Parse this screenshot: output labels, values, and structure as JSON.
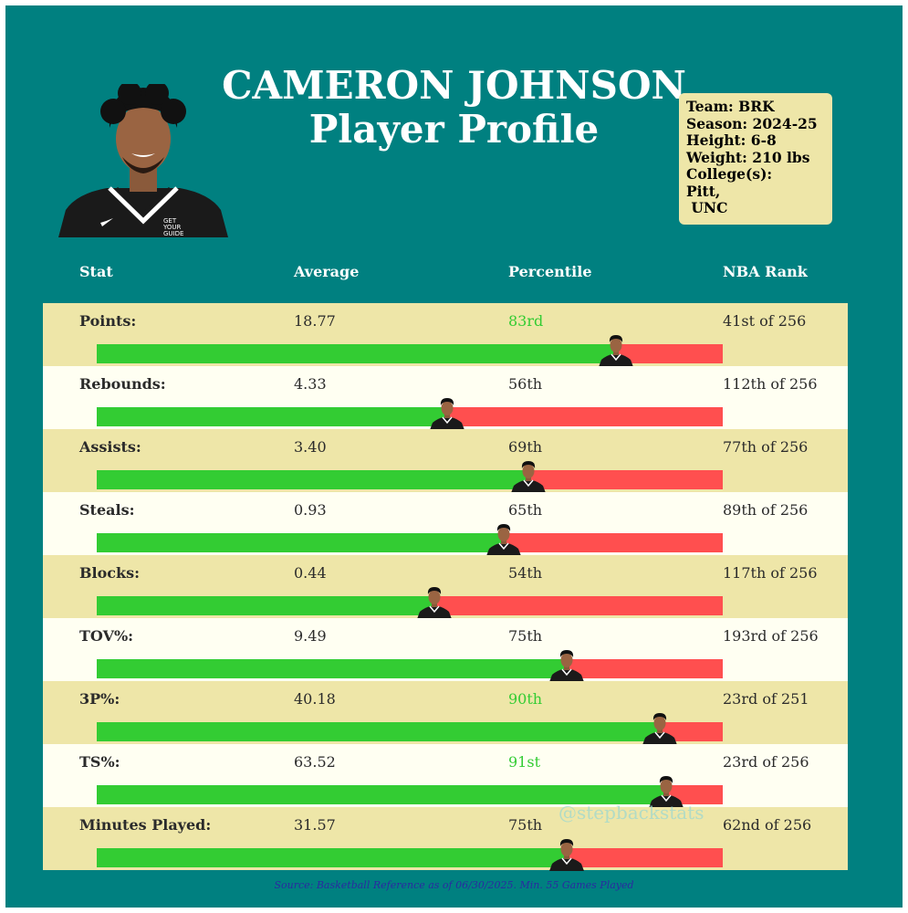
{
  "header": {
    "name": "CAMERON JOHNSON",
    "subtitle": "Player Profile"
  },
  "info": {
    "team": "Team: BRK",
    "season": "Season: 2024-25",
    "height": "Height: 6-8",
    "weight": "Weight: 210 lbs",
    "college_label": "College(s):",
    "college_1": "Pitt,",
    "college_2": " UNC"
  },
  "columns": {
    "stat": "Stat",
    "average": "Average",
    "percentile": "Percentile",
    "rank": "NBA Rank"
  },
  "chart_data": {
    "type": "bar",
    "title": "CAMERON JOHNSON Player Profile",
    "scale": [
      0,
      100
    ],
    "series": [
      {
        "name": "Percentile",
        "values": [
          83,
          56,
          69,
          65,
          54,
          75,
          90,
          91,
          75
        ]
      }
    ],
    "categories": [
      "Points:",
      "Rebounds:",
      "Assists:",
      "Steals:",
      "Blocks:",
      "TOV%:",
      "3P%:",
      "TS%:",
      "Minutes Played:"
    ],
    "rows": [
      {
        "label": "Points:",
        "average": "18.77",
        "percentile_text": "83rd",
        "percentile": 83,
        "rank": "41st of 256",
        "highlight": true
      },
      {
        "label": "Rebounds:",
        "average": "4.33",
        "percentile_text": "56th",
        "percentile": 56,
        "rank": "112th of 256",
        "highlight": false
      },
      {
        "label": "Assists:",
        "average": "3.40",
        "percentile_text": "69th",
        "percentile": 69,
        "rank": "77th of 256",
        "highlight": false
      },
      {
        "label": "Steals:",
        "average": "0.93",
        "percentile_text": "65th",
        "percentile": 65,
        "rank": "89th of 256",
        "highlight": false
      },
      {
        "label": "Blocks:",
        "average": "0.44",
        "percentile_text": "54th",
        "percentile": 54,
        "rank": "117th of 256",
        "highlight": false
      },
      {
        "label": "TOV%:",
        "average": "9.49",
        "percentile_text": "75th",
        "percentile": 75,
        "rank": "193rd of 256",
        "highlight": false
      },
      {
        "label": "3P%:",
        "average": "40.18",
        "percentile_text": "90th",
        "percentile": 90,
        "rank": "23rd of 251",
        "highlight": true
      },
      {
        "label": "TS%:",
        "average": "63.52",
        "percentile_text": "91st",
        "percentile": 91,
        "rank": "23rd of 256",
        "highlight": true
      },
      {
        "label": "Minutes Played:",
        "average": "31.57",
        "percentile_text": "75th",
        "percentile": 75,
        "rank": "62nd of 256",
        "highlight": false
      }
    ]
  },
  "colors": {
    "background": "#008080",
    "row_odd": "#EEE6A8",
    "row_even": "#FFFFF2",
    "bar_good": "#33CC33",
    "bar_bad": "#FF4F4F",
    "highlight_text": "#33CC33"
  },
  "watermark": "@stepbackstats",
  "footer": {
    "source": "Source: Basketball Reference as of 06/30/2025. Min. 55 Games Played"
  }
}
